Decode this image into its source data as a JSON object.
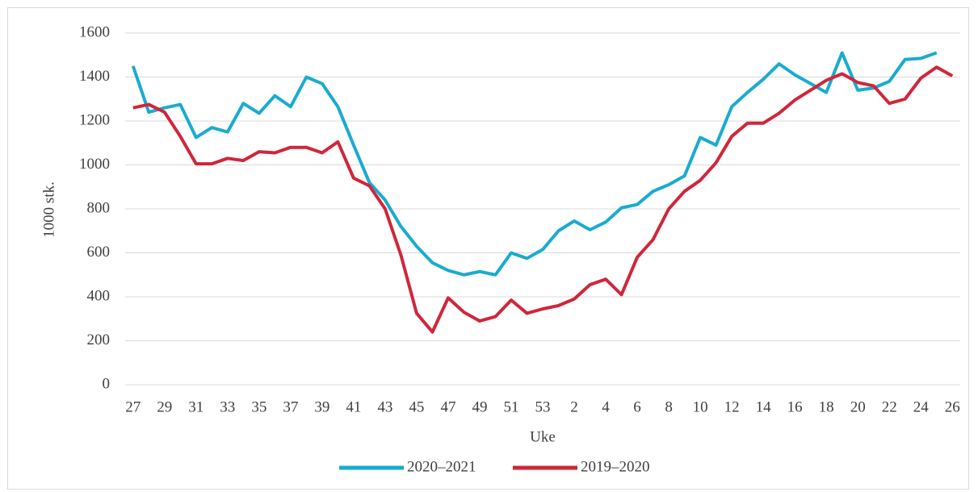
{
  "chart_data": {
    "type": "line",
    "x_label": "Uke",
    "y_label": "1000 stk.",
    "categories": [
      "27",
      null,
      "29",
      null,
      "31",
      null,
      "33",
      null,
      "35",
      null,
      "37",
      null,
      "39",
      null,
      "41",
      null,
      "43",
      null,
      "45",
      null,
      "47",
      null,
      "49",
      null,
      "51",
      null,
      "53",
      null,
      "2",
      null,
      "4",
      null,
      "6",
      null,
      "8",
      null,
      "10",
      null,
      "12",
      null,
      "14",
      null,
      "16",
      null,
      "18",
      null,
      "20",
      null,
      "22",
      null,
      "24",
      null,
      "26"
    ],
    "series": [
      {
        "name": "2020–2021",
        "color": "#1aabd0",
        "values": [
          1450,
          1240,
          1260,
          1275,
          1125,
          1170,
          1150,
          1280,
          1235,
          1315,
          1265,
          1400,
          1370,
          1265,
          1090,
          920,
          840,
          720,
          630,
          555,
          520,
          500,
          515,
          500,
          600,
          575,
          615,
          700,
          745,
          705,
          740,
          805,
          820,
          880,
          910,
          950,
          1125,
          1090,
          1265,
          1330,
          1390,
          1460,
          1410,
          1370,
          1330,
          1510,
          1340,
          1350,
          1380,
          1480,
          1485,
          1510,
          null
        ]
      },
      {
        "name": "2019–2020",
        "color": "#d0263a",
        "values": [
          1260,
          1275,
          1240,
          1130,
          1005,
          1005,
          1030,
          1020,
          1060,
          1055,
          1080,
          1080,
          1055,
          1105,
          940,
          905,
          800,
          590,
          325,
          240,
          395,
          330,
          290,
          310,
          385,
          325,
          345,
          360,
          390,
          455,
          480,
          410,
          580,
          660,
          800,
          880,
          930,
          1010,
          1130,
          1190,
          1190,
          1235,
          1295,
          1340,
          1385,
          1415,
          1375,
          1360,
          1280,
          1300,
          1395,
          1445,
          1405
        ]
      }
    ],
    "ylim": [
      0,
      1600
    ],
    "yticks": [
      0,
      200,
      400,
      600,
      800,
      1000,
      1200,
      1400,
      1600
    ],
    "grid": true,
    "legend": "bottom"
  }
}
